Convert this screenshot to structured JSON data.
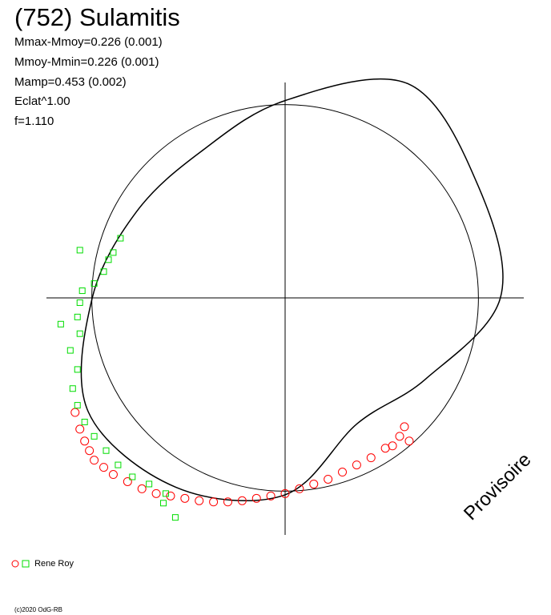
{
  "header": {
    "title": "(752) Sulamitis",
    "stats": [
      "Mmax-Mmoy=0.226 (0.001)",
      "Mmoy-Mmin=0.226 (0.001)",
      "Mamp=0.453 (0.002)",
      "Eclat^1.00",
      "f=1.110"
    ]
  },
  "legend": {
    "label": "Rene Roy"
  },
  "watermark": "Provisoire",
  "copyright": "(c)2020 OdG-RB",
  "chart_data": {
    "type": "scatter",
    "coordinate_system": "polar-lightcurve",
    "axis_range": [
      -1,
      1
    ],
    "reference_circle_radius": 0.81,
    "grid": "crosshair",
    "model_curve": [
      {
        "angle_deg": 0,
        "r": 0.902
      },
      {
        "angle_deg": 30,
        "r": 0.935
      },
      {
        "angle_deg": 60,
        "r": 1.035
      },
      {
        "angle_deg": 90,
        "r": 0.827
      },
      {
        "angle_deg": 120,
        "r": 0.707
      },
      {
        "angle_deg": 150,
        "r": 0.72
      },
      {
        "angle_deg": 180,
        "r": 0.808
      },
      {
        "angle_deg": 210,
        "r": 0.953
      },
      {
        "angle_deg": 240,
        "r": 0.916
      },
      {
        "angle_deg": 270,
        "r": 0.825
      },
      {
        "angle_deg": 300,
        "r": 0.607
      },
      {
        "angle_deg": 330,
        "r": 0.68
      },
      {
        "angle_deg": 360,
        "r": 0.902
      }
    ],
    "series": [
      {
        "color": "#ff0000",
        "marker": "circle",
        "points": [
          [
            -0.88,
            -0.48
          ],
          [
            -0.86,
            -0.55
          ],
          [
            -0.84,
            -0.6
          ],
          [
            -0.82,
            -0.64
          ],
          [
            -0.8,
            -0.68
          ],
          [
            -0.76,
            -0.71
          ],
          [
            -0.72,
            -0.74
          ],
          [
            -0.66,
            -0.77
          ],
          [
            -0.6,
            -0.8
          ],
          [
            -0.54,
            -0.82
          ],
          [
            -0.48,
            -0.83
          ],
          [
            -0.42,
            -0.84
          ],
          [
            -0.36,
            -0.85
          ],
          [
            -0.3,
            -0.855
          ],
          [
            -0.24,
            -0.855
          ],
          [
            -0.18,
            -0.85
          ],
          [
            -0.12,
            -0.84
          ],
          [
            -0.06,
            -0.83
          ],
          [
            0.0,
            -0.82
          ],
          [
            0.06,
            -0.8
          ],
          [
            0.12,
            -0.78
          ],
          [
            0.18,
            -0.76
          ],
          [
            0.24,
            -0.73
          ],
          [
            0.3,
            -0.7
          ],
          [
            0.36,
            -0.67
          ],
          [
            0.42,
            -0.63
          ],
          [
            0.48,
            -0.58
          ],
          [
            0.5,
            -0.54
          ],
          [
            0.52,
            -0.6
          ],
          [
            0.45,
            -0.62
          ]
        ]
      },
      {
        "color": "#00dd00",
        "marker": "square",
        "points": [
          [
            -0.69,
            0.25
          ],
          [
            -0.72,
            0.19
          ],
          [
            -0.74,
            0.16
          ],
          [
            -0.76,
            0.11
          ],
          [
            -0.8,
            0.06
          ],
          [
            -0.85,
            0.03
          ],
          [
            -0.86,
            -0.02
          ],
          [
            -0.87,
            -0.08
          ],
          [
            -0.86,
            -0.15
          ],
          [
            -0.9,
            -0.22
          ],
          [
            -0.87,
            -0.3
          ],
          [
            -0.89,
            -0.38
          ],
          [
            -0.87,
            -0.45
          ],
          [
            -0.84,
            -0.52
          ],
          [
            -0.8,
            -0.58
          ],
          [
            -0.75,
            -0.64
          ],
          [
            -0.7,
            -0.7
          ],
          [
            -0.64,
            -0.75
          ],
          [
            -0.57,
            -0.78
          ],
          [
            -0.5,
            -0.82
          ],
          [
            -0.46,
            -0.92
          ],
          [
            -0.51,
            -0.86
          ],
          [
            -0.86,
            0.2
          ],
          [
            -0.94,
            -0.11
          ]
        ]
      }
    ]
  }
}
